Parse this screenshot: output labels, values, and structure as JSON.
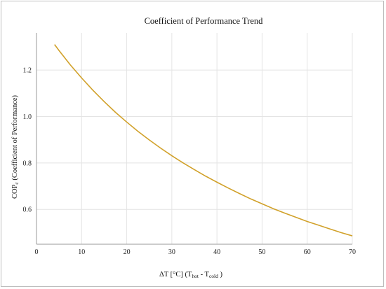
{
  "chart_data": {
    "type": "line",
    "title": "Coefficient of Performance Trend",
    "xlabel": {
      "prefix": "ΔT [°C] (T",
      "sub1": "hot",
      "mid": " - T",
      "sub2": "cold",
      "suffix": " )"
    },
    "ylabel": {
      "prefix": "COP",
      "sub": "c",
      "suffix": " (Coefficient of Performance)"
    },
    "xlim": [
      0,
      70
    ],
    "ylim": [
      0.45,
      1.36
    ],
    "xticks": [
      0,
      10,
      20,
      30,
      40,
      50,
      60,
      70
    ],
    "yticks": [
      0.6,
      0.8,
      1.0,
      1.2
    ],
    "ytick_labels": [
      "0.6",
      "0.8",
      "1.0",
      "1.2"
    ],
    "grid": true,
    "line_color": "#d1a12a",
    "series": [
      {
        "x": [
          4,
          5,
          7.5,
          10,
          12.5,
          15,
          17.5,
          20,
          22.5,
          25,
          27.5,
          30,
          32.5,
          35,
          37.5,
          40,
          42.5,
          45,
          47.5,
          50,
          52.5,
          55,
          57.5,
          60,
          62.5,
          65,
          67.5,
          70
        ],
        "y": [
          1.31,
          1.284,
          1.222,
          1.166,
          1.113,
          1.064,
          1.018,
          0.976,
          0.936,
          0.899,
          0.864,
          0.831,
          0.8,
          0.771,
          0.743,
          0.717,
          0.692,
          0.668,
          0.645,
          0.624,
          0.603,
          0.584,
          0.566,
          0.548,
          0.532,
          0.516,
          0.5,
          0.486
        ]
      }
    ]
  }
}
